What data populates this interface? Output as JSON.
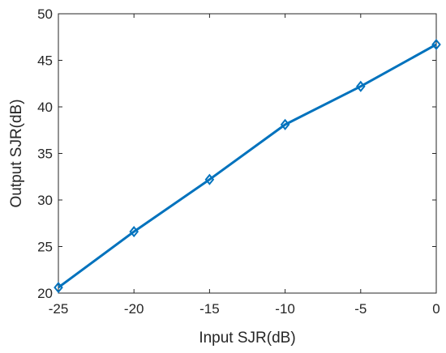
{
  "chart_data": {
    "type": "line",
    "title": "",
    "xlabel": "Input SJR(dB)",
    "ylabel": "Output SJR(dB)",
    "xlim": [
      -25,
      0
    ],
    "ylim": [
      20,
      50
    ],
    "xticks": [
      -25,
      -20,
      -15,
      -10,
      -5,
      0
    ],
    "yticks": [
      20,
      25,
      30,
      35,
      40,
      45,
      50
    ],
    "xtick_labels": [
      "-25",
      "-20",
      "-15",
      "-10",
      "-5",
      "0"
    ],
    "ytick_labels": [
      "20",
      "25",
      "30",
      "35",
      "40",
      "45",
      "50"
    ],
    "grid": false,
    "series": [
      {
        "x": [
          -25,
          -20,
          -15,
          -10,
          -5,
          0
        ],
        "y": [
          20.6,
          26.6,
          32.2,
          38.1,
          42.2,
          46.7
        ],
        "color": "#0072BD",
        "marker": "diamond"
      }
    ]
  }
}
